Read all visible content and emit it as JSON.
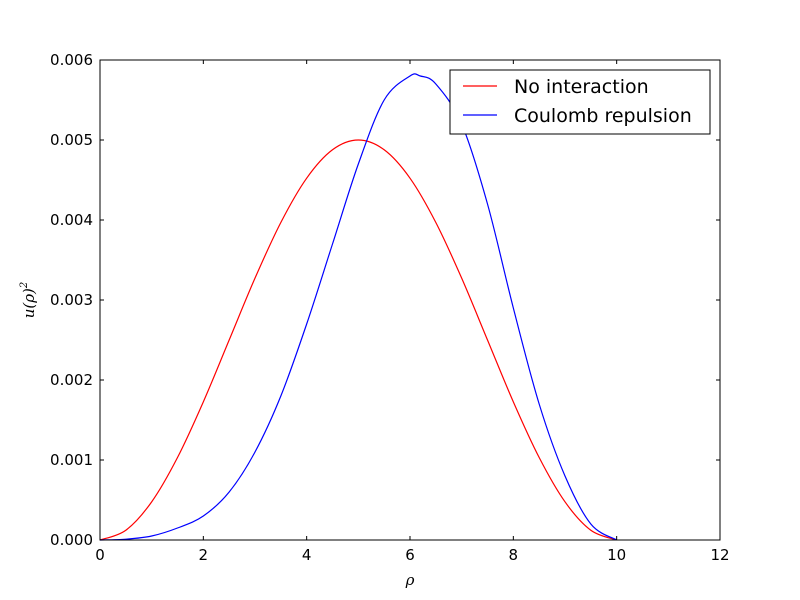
{
  "chart_data": {
    "type": "line",
    "xlabel": "ρ",
    "ylabel_base": "u(ρ)",
    "ylabel_sup": "2",
    "xlim": [
      0,
      12
    ],
    "ylim": [
      0,
      0.006
    ],
    "xticks": [
      0,
      2,
      4,
      6,
      8,
      10,
      12
    ],
    "xtick_labels": [
      "0",
      "2",
      "4",
      "6",
      "8",
      "10",
      "12"
    ],
    "yticks": [
      0,
      0.001,
      0.002,
      0.003,
      0.004,
      0.005,
      0.006
    ],
    "ytick_labels": [
      "0.000",
      "0.001",
      "0.002",
      "0.003",
      "0.004",
      "0.005",
      "0.006"
    ],
    "grid": false,
    "legend_position": "top-right",
    "series": [
      {
        "name": "No interaction",
        "color": "#ff0000",
        "x": [
          0,
          0.5,
          1,
          1.5,
          2,
          2.5,
          3,
          3.5,
          4,
          4.5,
          5,
          5.5,
          6,
          6.5,
          7,
          7.5,
          8,
          8.5,
          9,
          9.5,
          10
        ],
        "y": [
          0,
          0.000122,
          0.000477,
          0.001031,
          0.001727,
          0.0025,
          0.003273,
          0.003969,
          0.004523,
          0.004878,
          0.005,
          0.004878,
          0.004523,
          0.003969,
          0.003273,
          0.0025,
          0.001727,
          0.001031,
          0.000477,
          0.000122,
          0
        ]
      },
      {
        "name": "Coulomb repulsion",
        "color": "#0000ff",
        "x": [
          0,
          0.5,
          1,
          1.5,
          2,
          2.5,
          3,
          3.5,
          4,
          4.5,
          5,
          5.5,
          6,
          6.2,
          6.5,
          7,
          7.5,
          8,
          8.5,
          9,
          9.5,
          10
        ],
        "y": [
          0,
          1e-05,
          5e-05,
          0.00015,
          0.0003,
          0.0006,
          0.0011,
          0.0018,
          0.0027,
          0.0037,
          0.0047,
          0.0055,
          0.0058,
          0.0058,
          0.0057,
          0.0052,
          0.0042,
          0.0029,
          0.0017,
          0.0008,
          0.0002,
          0
        ]
      }
    ]
  }
}
